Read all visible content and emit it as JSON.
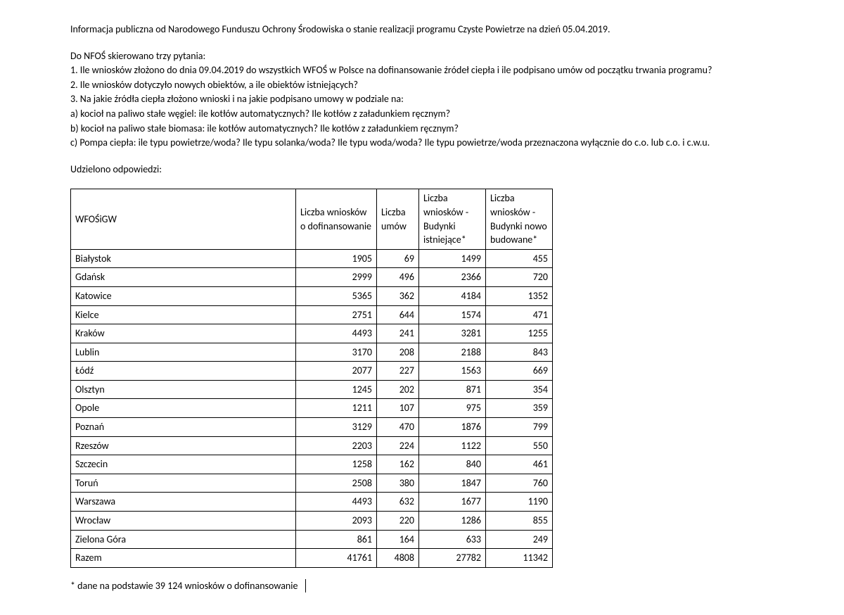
{
  "intro": "Informacja publiczna od Narodowego Funduszu Ochrony Środowiska o stanie realizacji programu Czyste Powietrze na dzień 05.04.2019.",
  "questions_intro": "Do NFOŚ skierowano trzy pytania:",
  "q1": "1. Ile wniosków złożono do dnia 09.04.2019 do wszystkich WFOŚ w Polsce na dofinansowanie źródeł ciepła i ile podpisano umów od początku trwania programu?",
  "q2": "2. Ile wniosków dotyczyło nowych obiektów, a ile obiektów istniejących?",
  "q3": "3. Na jakie źródła ciepła złożono wnioski i na jakie podpisano umowy w podziale na:",
  "q3a": "a) kocioł na paliwo stałe węgiel: ile kotłów automatycznych? Ile kotłów z załadunkiem ręcznym?",
  "q3b": "b) kocioł na paliwo stałe biomasa: ile kotłów automatycznych? Ile kotłów z załadunkiem ręcznym?",
  "q3c": "c) Pompa ciepła: ile typu powietrze/woda? Ile typu solanka/woda? Ile typu woda/woda? Ile typu powietrze/woda przeznaczona wyłącznie do c.o. lub c.o. i c.w.u.",
  "answer_label": "Udzielono odpowiedzi:",
  "table": {
    "columns": [
      "WFOŚiGW",
      "Liczba wniosków o dofinansowanie",
      "Liczba umów",
      "Liczba wniosków - Budynki istniejące*",
      "Liczba wniosków - Budynki nowo budowane*"
    ],
    "rows": [
      [
        "Białystok",
        "1905",
        "69",
        "1499",
        "455"
      ],
      [
        "Gdańsk",
        "2999",
        "496",
        "2366",
        "720"
      ],
      [
        "Katowice",
        "5365",
        "362",
        "4184",
        "1352"
      ],
      [
        "Kielce",
        "2751",
        "644",
        "1574",
        "471"
      ],
      [
        "Kraków",
        "4493",
        "241",
        "3281",
        "1255"
      ],
      [
        "Lublin",
        "3170",
        "208",
        "2188",
        "843"
      ],
      [
        "Łódź",
        "2077",
        "227",
        "1563",
        "669"
      ],
      [
        "Olsztyn",
        "1245",
        "202",
        "871",
        "354"
      ],
      [
        "Opole",
        "1211",
        "107",
        "975",
        "359"
      ],
      [
        "Poznań",
        "3129",
        "470",
        "1876",
        "799"
      ],
      [
        "Rzeszów",
        "2203",
        "224",
        "1122",
        "550"
      ],
      [
        "Szczecin",
        "1258",
        "162",
        "840",
        "461"
      ],
      [
        "Toruń",
        "2508",
        "380",
        "1847",
        "760"
      ],
      [
        "Warszawa",
        "4493",
        "632",
        "1677",
        "1190"
      ],
      [
        "Wrocław",
        "2093",
        "220",
        "1286",
        "855"
      ],
      [
        "Zielona Góra",
        "861",
        "164",
        "633",
        "249"
      ],
      [
        "Razem",
        "41761",
        "4808",
        "27782",
        "11342"
      ]
    ]
  },
  "footnote": "* dane na podstawie 39 124 wniosków o dofinansowanie"
}
